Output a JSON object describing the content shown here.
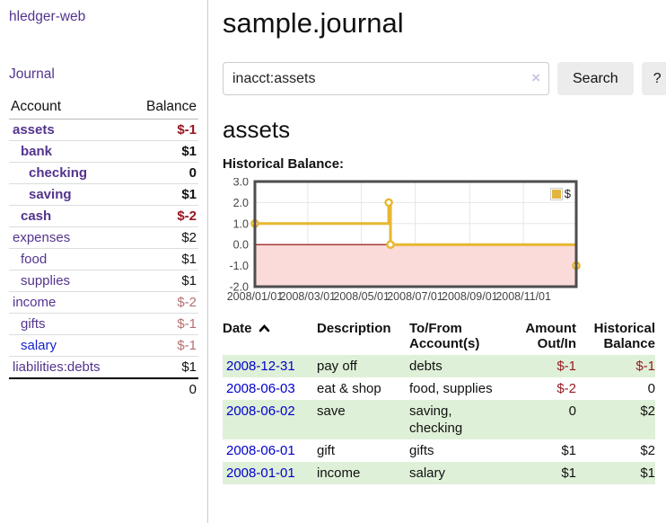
{
  "sidebar": {
    "brand": "hledger-web",
    "nav_journal": "Journal",
    "col_account": "Account",
    "col_balance": "Balance",
    "accounts": [
      {
        "name": "assets",
        "balance": "$-1",
        "level": 0,
        "bold": true,
        "negative": true
      },
      {
        "name": "bank",
        "balance": "$1",
        "level": 1,
        "bold": true,
        "negative": false
      },
      {
        "name": "checking",
        "balance": "0",
        "level": 2,
        "bold": true,
        "negative": false
      },
      {
        "name": "saving",
        "balance": "$1",
        "level": 2,
        "bold": true,
        "negative": false
      },
      {
        "name": "cash",
        "balance": "$-2",
        "level": 1,
        "bold": true,
        "negative": true
      },
      {
        "name": "expenses",
        "balance": "$2",
        "level": 0,
        "bold": false,
        "negative": false
      },
      {
        "name": "food",
        "balance": "$1",
        "level": 1,
        "bold": false,
        "negative": false
      },
      {
        "name": "supplies",
        "balance": "$1",
        "level": 1,
        "bold": false,
        "negative": false
      },
      {
        "name": "income",
        "balance": "$-2",
        "level": 0,
        "bold": false,
        "negative": true
      },
      {
        "name": "gifts",
        "balance": "$-1",
        "level": 1,
        "bold": false,
        "negative": true
      },
      {
        "name": "salary",
        "balance": "$-1",
        "level": 1,
        "bold": false,
        "negative": true,
        "unvisited": true
      },
      {
        "name": "liabilities:debts",
        "balance": "$1",
        "level": 0,
        "bold": false,
        "negative": false
      }
    ],
    "total": "0"
  },
  "header": {
    "title": "sample.journal"
  },
  "search": {
    "value": "inacct:assets",
    "clear_icon": "×",
    "search_label": "Search",
    "help_label": "?"
  },
  "account_page": {
    "heading": "assets",
    "chart_title": "Historical Balance:"
  },
  "chart_data": {
    "type": "line",
    "title": "Historical Balance",
    "style": "steps",
    "series": [
      {
        "name": "$",
        "color": "#e8b62f",
        "points": [
          {
            "date": "2008-01-01",
            "value": 1
          },
          {
            "date": "2008-06-01",
            "value": 2
          },
          {
            "date": "2008-06-03",
            "value": 0
          },
          {
            "date": "2008-12-31",
            "value": -1
          }
        ]
      }
    ],
    "x_range": [
      "2008-01-01",
      "2008-12-31"
    ],
    "y_range": [
      -2,
      3
    ],
    "x_ticks": [
      "2008/01/01",
      "2008/03/01",
      "2008/05/01",
      "2008/07/01",
      "2008/09/01",
      "2008/11/01"
    ],
    "y_ticks": [
      3.0,
      2.0,
      1.0,
      0.0,
      -1.0,
      -2.0
    ],
    "legend": {
      "label": "$",
      "position": "top-right"
    },
    "grid_color": "#e6e6e6",
    "border_color": "#4d4d4d",
    "negative_region_color": "#fbdada",
    "zero_line_color": "#8b0000",
    "marker_fill": "#ffffff"
  },
  "register": {
    "headers": {
      "date": "Date",
      "description": "Description",
      "tofrom": "To/From Account(s)",
      "amount": "Amount Out/In",
      "balance": "Historical Balance"
    },
    "rows": [
      {
        "date": "2008-12-31",
        "description": "pay off",
        "accounts": "debts",
        "amount": "$-1",
        "balance": "$-1",
        "amount_negative": true,
        "balance_negative": true
      },
      {
        "date": "2008-06-03",
        "description": "eat & shop",
        "accounts": "food, supplies",
        "amount": "$-2",
        "balance": "0",
        "amount_negative": true,
        "balance_negative": false
      },
      {
        "date": "2008-06-02",
        "description": "save",
        "accounts": "saving, checking",
        "amount": "0",
        "balance": "$2",
        "amount_negative": false,
        "balance_negative": false
      },
      {
        "date": "2008-06-01",
        "description": "gift",
        "accounts": "gifts",
        "amount": "$1",
        "balance": "$2",
        "amount_negative": false,
        "balance_negative": false
      },
      {
        "date": "2008-01-01",
        "description": "income",
        "accounts": "salary",
        "amount": "$1",
        "balance": "$1",
        "amount_negative": false,
        "balance_negative": false
      }
    ]
  }
}
